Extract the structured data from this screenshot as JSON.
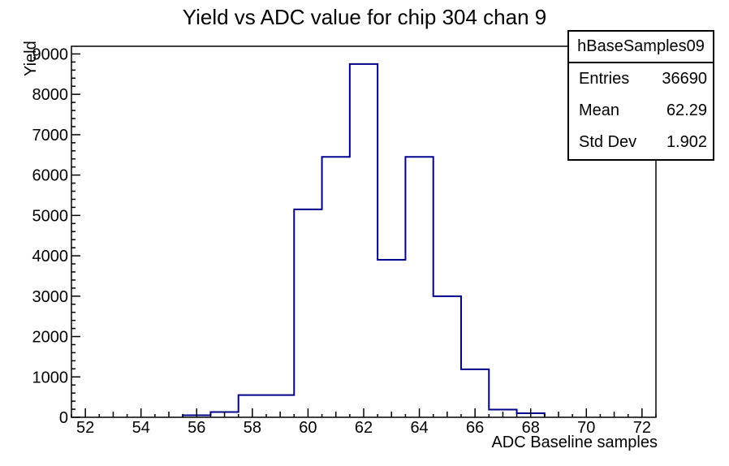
{
  "page": {
    "title": "Yield vs ADC value for chip 304 chan 9"
  },
  "stats_box": {
    "title": "hBaseSamples09",
    "entries_label": "Entries",
    "entries_value": "36690",
    "mean_label": "Mean",
    "mean_value": "62.29",
    "stddev_label": "Std Dev",
    "stddev_value": "1.902"
  },
  "chart_data": {
    "type": "bar",
    "subtype": "step-histogram",
    "title": "Yield vs ADC value for chip 304 chan 9",
    "xlabel": "ADC Baseline samples",
    "ylabel": "Yield",
    "xlim": [
      51.5,
      72.5
    ],
    "ylim": [
      0,
      9190
    ],
    "bin_start": 51.5,
    "bin_width": 1,
    "counts": [
      0,
      0,
      0,
      0,
      50,
      130,
      550,
      550,
      5150,
      6450,
      8750,
      3900,
      6450,
      3000,
      1190,
      190,
      100,
      0,
      0,
      0,
      0
    ],
    "x_major_ticks": [
      52,
      54,
      56,
      58,
      60,
      62,
      64,
      66,
      68,
      70,
      72
    ],
    "x_minor_step": 0.5,
    "y_major_ticks": [
      0,
      1000,
      2000,
      3000,
      4000,
      5000,
      6000,
      7000,
      8000,
      9000
    ],
    "y_minor_step": 200,
    "grid": false,
    "legend_position": "top-right stats box",
    "line_color": "#00008b",
    "frame_color": "#000000",
    "background_color": "#ffffff"
  }
}
